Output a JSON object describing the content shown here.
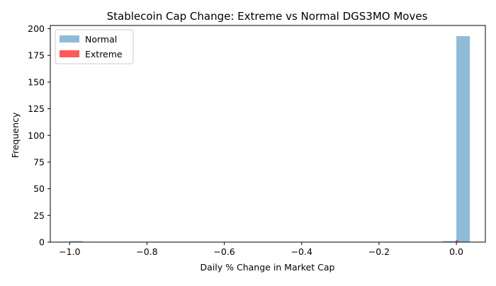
{
  "chart_data": {
    "type": "bar",
    "chart_kind": "histogram",
    "title": "Stablecoin Cap Change: Extreme vs Normal DGS3MO Moves",
    "xlabel": "Daily % Change in Market Cap",
    "ylabel": "Frequency",
    "xlim": [
      -1.05,
      0.075
    ],
    "ylim": [
      0,
      203
    ],
    "xticks": [
      -1.0,
      -0.8,
      -0.6,
      -0.4,
      -0.2,
      0.0
    ],
    "xtick_labels": [
      "−1.0",
      "−0.8",
      "−0.6",
      "−0.4",
      "−0.2",
      "0.0"
    ],
    "yticks": [
      0,
      25,
      50,
      75,
      100,
      125,
      150,
      175,
      200
    ],
    "ytick_labels": [
      "0",
      "25",
      "50",
      "75",
      "100",
      "125",
      "150",
      "175",
      "200"
    ],
    "grid": false,
    "legend_position": "upper-left",
    "series": [
      {
        "name": "Normal",
        "color": "#1f77b4",
        "opacity": 0.5,
        "bins": [
          {
            "x0": -1.0,
            "x1": -0.965,
            "count": 1
          },
          {
            "x0": -0.035,
            "x1": 0.0,
            "count": 1
          },
          {
            "x0": 0.0,
            "x1": 0.035,
            "count": 193
          }
        ]
      },
      {
        "name": "Extreme",
        "color": "#ff0000",
        "opacity": 0.65,
        "bins": [
          {
            "x0": -0.001,
            "x1": 0.0008,
            "count": 2
          },
          {
            "x0": 0.0008,
            "x1": 0.0026,
            "count": 2
          },
          {
            "x0": 0.0026,
            "x1": 0.0044,
            "count": 1
          }
        ]
      }
    ]
  }
}
